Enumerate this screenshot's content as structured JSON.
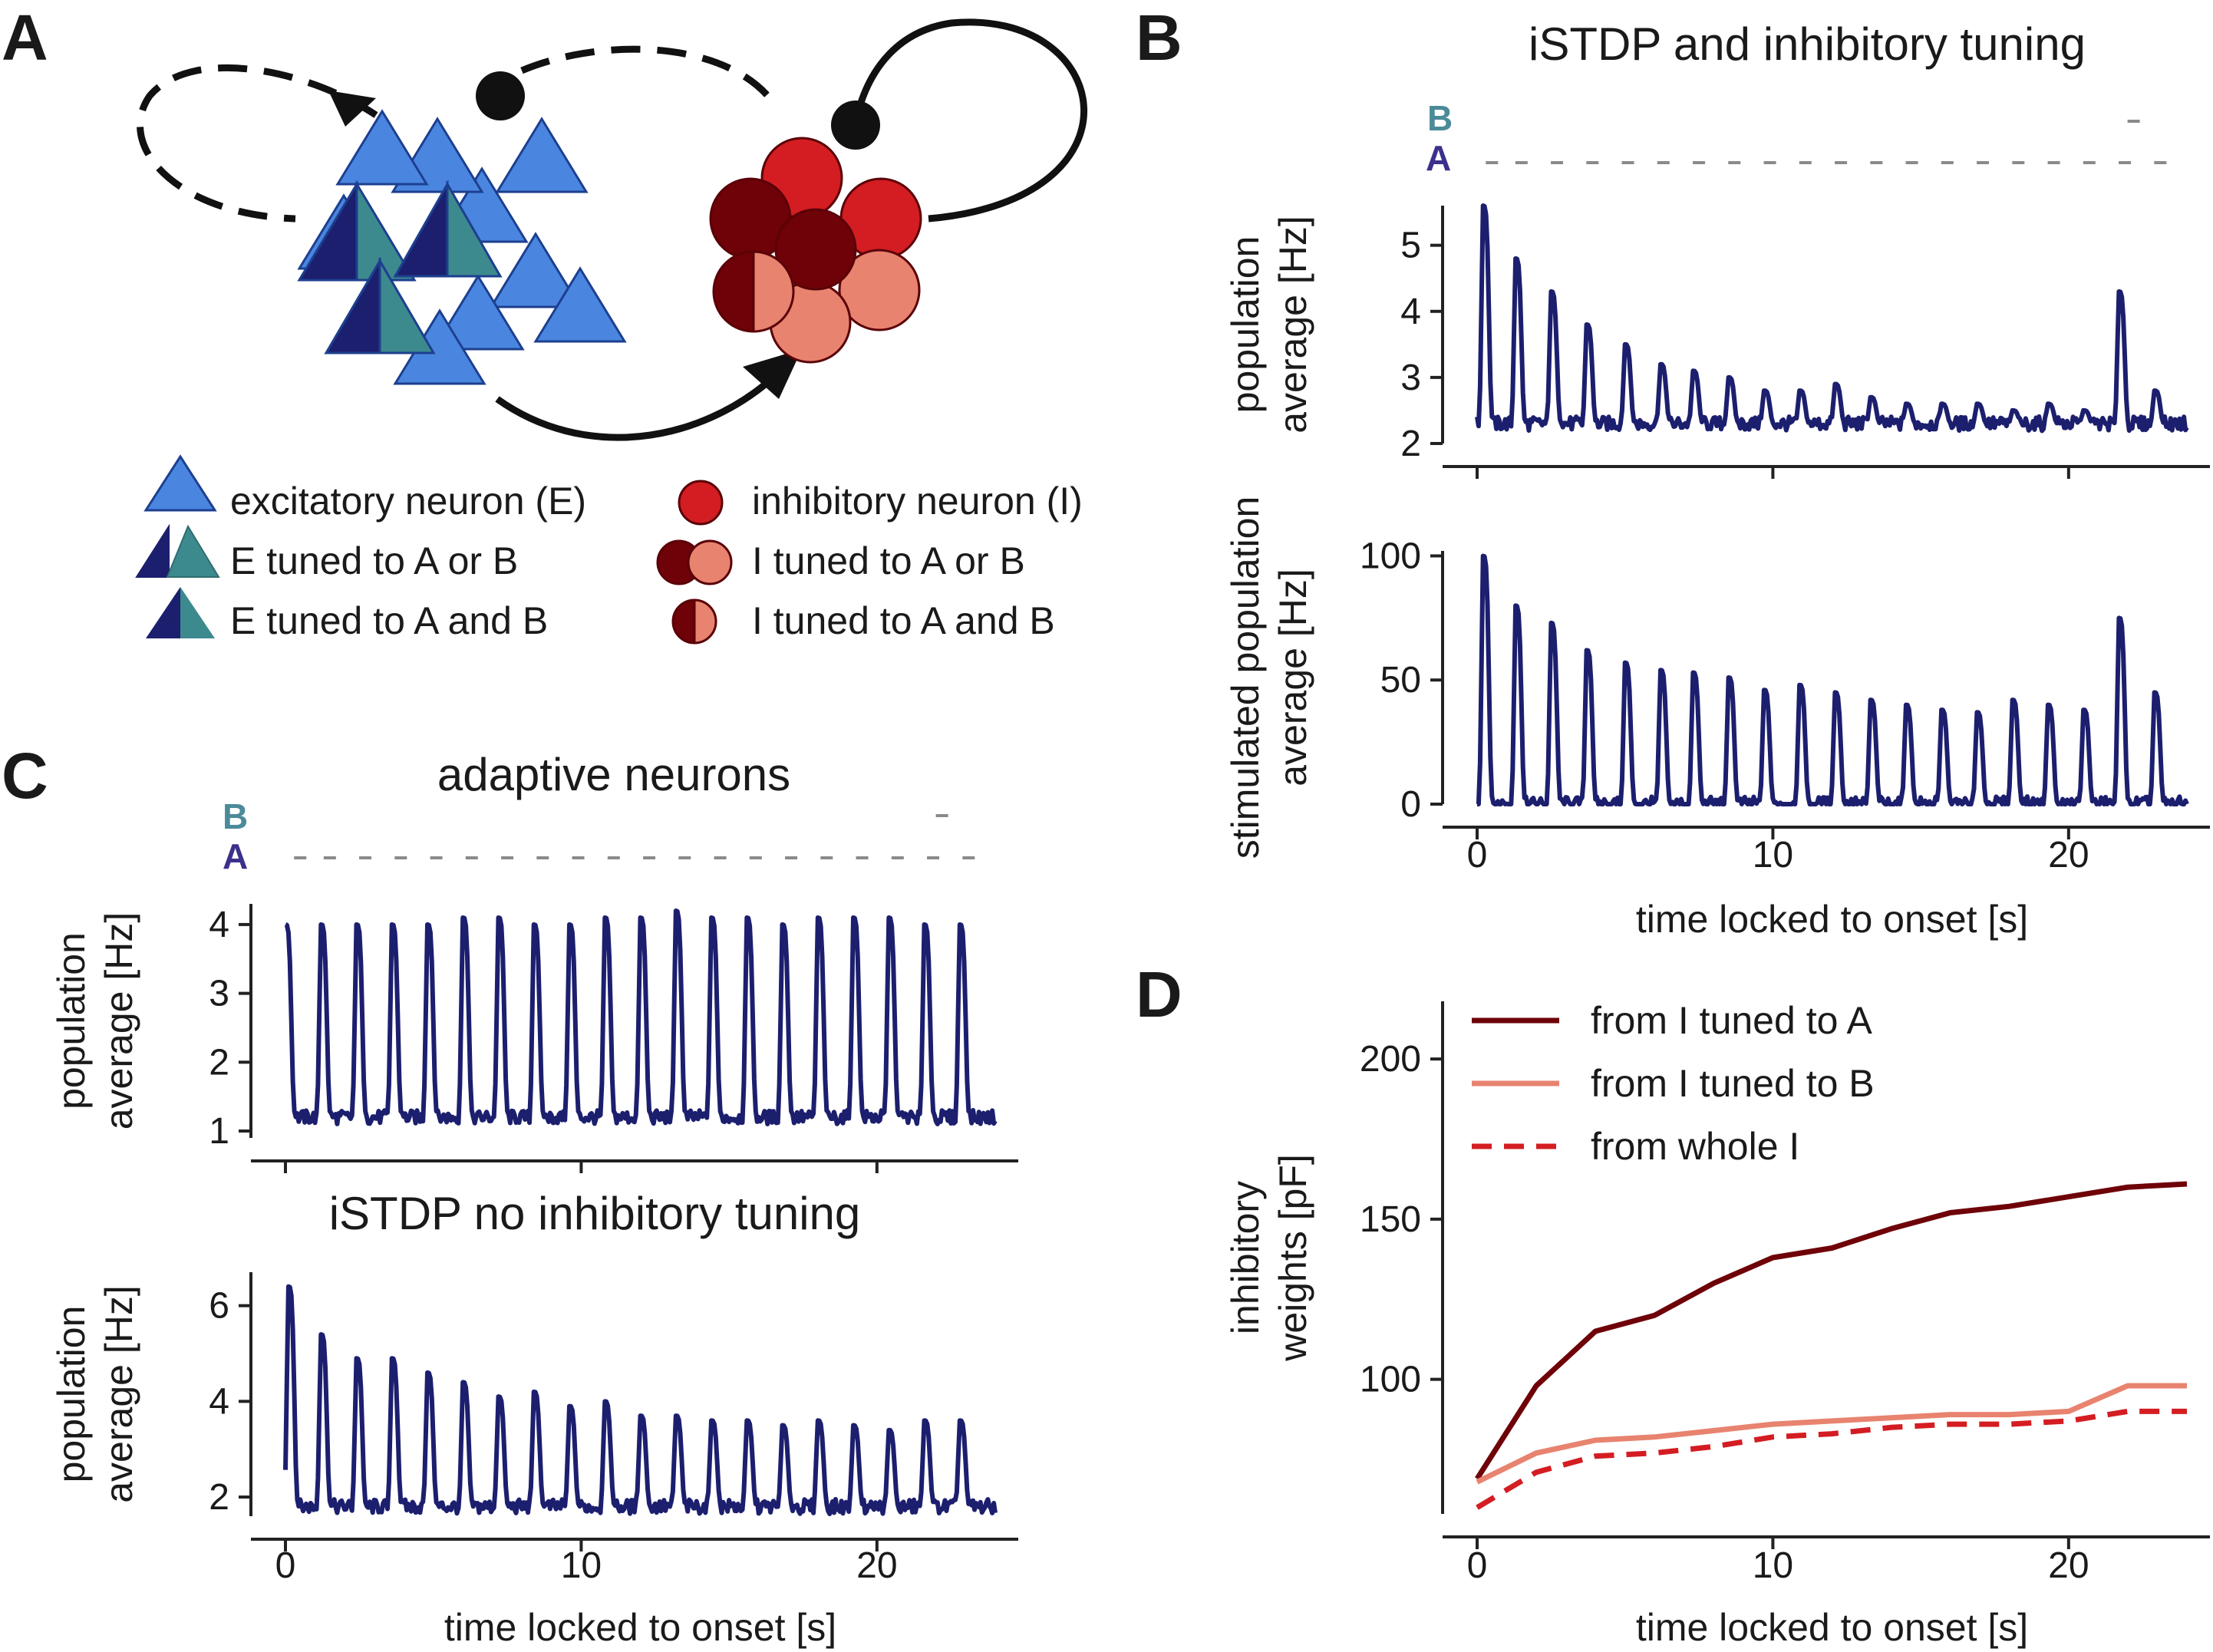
{
  "colors": {
    "trace": "#1c1f6e",
    "exc": "#4a86e0",
    "excA": "#1c1f6e",
    "excB": "#3d8a8e",
    "inh": "#d41d22",
    "inhA": "#6e0208",
    "inhB": "#e8836f",
    "seqA": "#3b318c",
    "seqB": "#4b8a99",
    "stim": "#8a8a8a"
  },
  "panels": {
    "A": "A",
    "B": "B",
    "C": "C",
    "D": "D"
  },
  "legendA": {
    "exc": "excitatory neuron (E)",
    "excAB_or": "E tuned to A or B",
    "excAB_and": "E tuned to A and B",
    "inh": "inhibitory neuron (I)",
    "inhAB_or": "I tuned to A or B",
    "inhAB_and": "I tuned to A and B"
  },
  "chart_data": [
    {
      "id": "B-top",
      "type": "line",
      "panel_title": "iSTDP and inhibitory tuning",
      "ylabel": [
        "population",
        "average [Hz]"
      ],
      "ylim": [
        2,
        5.6
      ],
      "yticks": [
        2,
        3,
        4,
        5
      ],
      "xlim": [
        0,
        24
      ],
      "xticks": [
        0,
        10,
        20
      ],
      "show_xtick_labels": false,
      "stim_labels": {
        "A": "A",
        "B": "B"
      },
      "stim_A": [
        0.5,
        1.5,
        2.7,
        3.9,
        5.1,
        6.3,
        7.5,
        8.7,
        9.9,
        11.1,
        12.3,
        13.5,
        14.7,
        15.9,
        17.1,
        18.3,
        19.5,
        20.7,
        21.9,
        23.1
      ],
      "stim_B": [
        22.2
      ],
      "series": [
        {
          "peak_times": [
            0.2,
            1.3,
            2.5,
            3.7,
            5.0,
            6.2,
            7.3,
            8.5,
            9.7,
            10.9,
            12.1,
            13.3,
            14.5,
            15.7,
            16.9,
            18.1,
            19.3,
            20.5,
            21.7,
            22.9
          ],
          "peak_values": [
            5.6,
            4.8,
            4.3,
            3.8,
            3.5,
            3.2,
            3.1,
            3.0,
            2.8,
            2.8,
            2.9,
            2.7,
            2.6,
            2.6,
            2.6,
            2.5,
            2.6,
            2.5,
            4.3,
            2.8
          ],
          "baseline": 2.3
        }
      ]
    },
    {
      "id": "B-bottom",
      "type": "line",
      "ylabel": [
        "stimulated population",
        "average [Hz]"
      ],
      "ylim": [
        0,
        102
      ],
      "yticks": [
        0,
        50,
        100
      ],
      "xlim": [
        0,
        24
      ],
      "xticks": [
        0,
        10,
        20
      ],
      "xlabel": "time locked to onset [s]",
      "series": [
        {
          "peak_times": [
            0.2,
            1.3,
            2.5,
            3.7,
            5.0,
            6.2,
            7.3,
            8.5,
            9.7,
            10.9,
            12.1,
            13.3,
            14.5,
            15.7,
            16.9,
            18.1,
            19.3,
            20.5,
            21.7,
            22.9
          ],
          "peak_values": [
            100,
            80,
            73,
            62,
            57,
            54,
            53,
            51,
            46,
            48,
            45,
            42,
            40,
            38,
            37,
            42,
            40,
            38,
            75,
            45
          ],
          "baseline": 0
        }
      ]
    },
    {
      "id": "C-top",
      "type": "line",
      "panel_title": "adaptive neurons",
      "ylabel": [
        "population",
        "average [Hz]"
      ],
      "ylim": [
        0.9,
        4.3
      ],
      "yticks": [
        1,
        2,
        3,
        4
      ],
      "xlim": [
        0,
        24
      ],
      "xticks": [
        0,
        10,
        20
      ],
      "show_xtick_labels": false,
      "stim_labels": {
        "A": "A",
        "B": "B"
      },
      "stim_A": [
        0.5,
        1.5,
        2.7,
        3.9,
        5.1,
        6.3,
        7.5,
        8.7,
        9.9,
        11.1,
        12.3,
        13.5,
        14.7,
        15.9,
        17.1,
        18.3,
        19.5,
        20.7,
        21.9,
        23.1
      ],
      "stim_B": [
        22.2
      ],
      "series": [
        {
          "peak_times": [
            0.0,
            1.2,
            2.4,
            3.6,
            4.8,
            6.0,
            7.2,
            8.4,
            9.6,
            10.8,
            12.0,
            13.2,
            14.4,
            15.6,
            16.8,
            18.0,
            19.2,
            20.4,
            21.6,
            22.8
          ],
          "peak_values": [
            4.0,
            4.0,
            4.0,
            4.0,
            4.0,
            4.1,
            4.1,
            4.0,
            4.0,
            4.1,
            4.1,
            4.2,
            4.1,
            4.1,
            4.0,
            4.1,
            4.1,
            4.1,
            4.0,
            4.0
          ],
          "baseline": 1.2
        }
      ]
    },
    {
      "id": "C-bottom",
      "type": "line",
      "panel_title": "iSTDP no inhibitory tuning",
      "ylabel": [
        "population",
        "average [Hz]"
      ],
      "ylim": [
        1.6,
        6.7
      ],
      "yticks": [
        2,
        4,
        6
      ],
      "xlim": [
        0,
        24
      ],
      "xticks": [
        0,
        10,
        20
      ],
      "xlabel": "time locked to onset [s]",
      "series": [
        {
          "peak_times": [
            0.1,
            1.2,
            2.4,
            3.6,
            4.8,
            6.0,
            7.2,
            8.4,
            9.6,
            10.8,
            12.0,
            13.2,
            14.4,
            15.6,
            16.8,
            18.0,
            19.2,
            20.4,
            21.6,
            22.8
          ],
          "peak_values": [
            6.4,
            5.4,
            4.9,
            4.9,
            4.6,
            4.4,
            4.1,
            4.2,
            3.9,
            4.0,
            3.7,
            3.7,
            3.6,
            3.6,
            3.5,
            3.6,
            3.5,
            3.4,
            3.6,
            3.6
          ],
          "baseline": 1.8
        }
      ]
    },
    {
      "id": "D",
      "type": "line",
      "ylabel": [
        "inhibitory",
        "weights [pF]"
      ],
      "ylim": [
        58,
        218
      ],
      "yticks": [
        100,
        150,
        200
      ],
      "xlim": [
        0,
        24
      ],
      "xticks": [
        0,
        10,
        20
      ],
      "xlabel": "time locked to onset [s]",
      "legend_position": "top-left",
      "x": [
        0,
        2,
        4,
        6,
        8,
        10,
        12,
        14,
        16,
        18,
        20,
        22,
        24
      ],
      "series": [
        {
          "name": "from I tuned to A",
          "color": "#6e0208",
          "dash": false,
          "values": [
            69,
            98,
            115,
            120,
            130,
            138,
            141,
            147,
            152,
            154,
            157,
            160,
            161
          ]
        },
        {
          "name": "from I tuned to B",
          "color": "#e8836f",
          "dash": false,
          "values": [
            68,
            77,
            81,
            82,
            84,
            86,
            87,
            88,
            89,
            89,
            90,
            98,
            98
          ]
        },
        {
          "name": "from whole I",
          "color": "#d41d22",
          "dash": true,
          "values": [
            60,
            71,
            76,
            77,
            79,
            82,
            83,
            85,
            86,
            86,
            87,
            90,
            90
          ]
        }
      ]
    }
  ]
}
